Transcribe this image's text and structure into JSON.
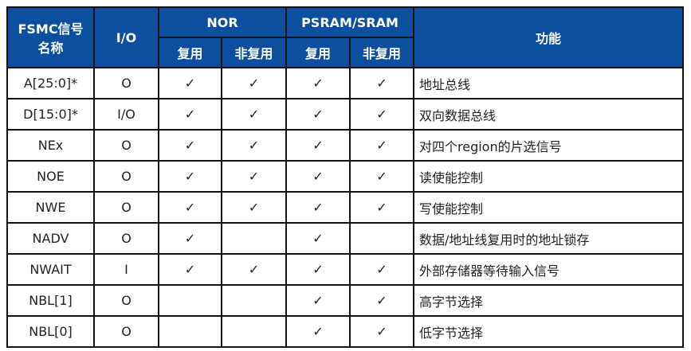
{
  "header": {
    "signal": "FSMC信号\n名称",
    "signal_l1": "FSMC信号",
    "signal_l2": "名称",
    "io": "I/O",
    "nor": "NOR",
    "psram": "PSRAM/SRAM",
    "mux": "复用",
    "nonmux": "非复用",
    "func": "功能"
  },
  "header_color": "#0b4f9e",
  "check": "✓",
  "rows": [
    {
      "signal": "A[25:0]*",
      "io": "O",
      "nor_mux": true,
      "nor_nonmux": true,
      "ps_mux": true,
      "ps_nonmux": true,
      "func": "地址总线"
    },
    {
      "signal": "D[15:0]*",
      "io": "I/O",
      "nor_mux": true,
      "nor_nonmux": true,
      "ps_mux": true,
      "ps_nonmux": true,
      "func": "双向数据总线"
    },
    {
      "signal": "NEx",
      "io": "O",
      "nor_mux": true,
      "nor_nonmux": true,
      "ps_mux": true,
      "ps_nonmux": true,
      "func": "对四个region的片选信号"
    },
    {
      "signal": "NOE",
      "io": "O",
      "nor_mux": true,
      "nor_nonmux": true,
      "ps_mux": true,
      "ps_nonmux": true,
      "func": "读使能控制"
    },
    {
      "signal": "NWE",
      "io": "O",
      "nor_mux": true,
      "nor_nonmux": true,
      "ps_mux": true,
      "ps_nonmux": true,
      "func": "写使能控制"
    },
    {
      "signal": "NADV",
      "io": "O",
      "nor_mux": true,
      "nor_nonmux": false,
      "ps_mux": true,
      "ps_nonmux": false,
      "func": "数据/地址线复用时的地址锁存"
    },
    {
      "signal": "NWAIT",
      "io": "I",
      "nor_mux": true,
      "nor_nonmux": true,
      "ps_mux": true,
      "ps_nonmux": true,
      "func": "外部存储器等待输入信号"
    },
    {
      "signal": "NBL[1]",
      "io": "O",
      "nor_mux": false,
      "nor_nonmux": false,
      "ps_mux": true,
      "ps_nonmux": true,
      "func": "高字节选择"
    },
    {
      "signal": "NBL[0]",
      "io": "O",
      "nor_mux": false,
      "nor_nonmux": false,
      "ps_mux": true,
      "ps_nonmux": true,
      "func": "低字节选择"
    }
  ]
}
